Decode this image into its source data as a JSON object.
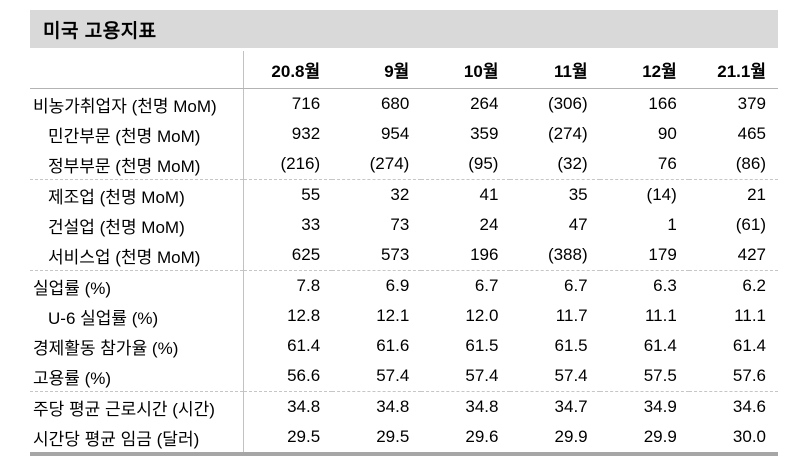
{
  "title": "미국 고용지표",
  "colors": {
    "title_bar_bg": "#d9d9d9",
    "header_underline": "#b3b3b3",
    "column_divider": "#c2c2c2",
    "dashed_separator": "#c6c6c6",
    "bottom_border": "#a6a6a6",
    "text": "#000000"
  },
  "chart_data": {
    "type": "table",
    "title": "미국 고용지표",
    "columns": [
      "",
      "20.8월",
      "9월",
      "10월",
      "11월",
      "12월",
      "21.1월"
    ],
    "rows": [
      {
        "label": "비농가취업자 (천명 MoM)",
        "indent": false,
        "separator_after": false,
        "values": [
          "716",
          "680",
          "264",
          "(306)",
          "166",
          "379"
        ]
      },
      {
        "label": "민간부문 (천명 MoM)",
        "indent": true,
        "separator_after": false,
        "values": [
          "932",
          "954",
          "359",
          "(274)",
          "90",
          "465"
        ]
      },
      {
        "label": "정부부문 (천명 MoM)",
        "indent": true,
        "separator_after": true,
        "values": [
          "(216)",
          "(274)",
          "(95)",
          "(32)",
          "76",
          "(86)"
        ]
      },
      {
        "label": "제조업 (천명 MoM)",
        "indent": true,
        "separator_after": false,
        "values": [
          "55",
          "32",
          "41",
          "35",
          "(14)",
          "21"
        ]
      },
      {
        "label": "건설업 (천명 MoM)",
        "indent": true,
        "separator_after": false,
        "values": [
          "33",
          "73",
          "24",
          "47",
          "1",
          "(61)"
        ]
      },
      {
        "label": "서비스업 (천명 MoM)",
        "indent": true,
        "separator_after": true,
        "values": [
          "625",
          "573",
          "196",
          "(388)",
          "179",
          "427"
        ]
      },
      {
        "label": "실업률 (%)",
        "indent": false,
        "separator_after": false,
        "values": [
          "7.8",
          "6.9",
          "6.7",
          "6.7",
          "6.3",
          "6.2"
        ]
      },
      {
        "label": "U-6 실업률 (%)",
        "indent": true,
        "separator_after": false,
        "values": [
          "12.8",
          "12.1",
          "12.0",
          "11.7",
          "11.1",
          "11.1"
        ]
      },
      {
        "label": "경제활동 참가율 (%)",
        "indent": false,
        "separator_after": false,
        "values": [
          "61.4",
          "61.6",
          "61.5",
          "61.5",
          "61.4",
          "61.4"
        ]
      },
      {
        "label": "고용률 (%)",
        "indent": false,
        "separator_after": true,
        "values": [
          "56.6",
          "57.4",
          "57.4",
          "57.4",
          "57.5",
          "57.6"
        ]
      },
      {
        "label": "주당 평균 근로시간 (시간)",
        "indent": false,
        "separator_after": false,
        "values": [
          "34.8",
          "34.8",
          "34.8",
          "34.7",
          "34.9",
          "34.6"
        ]
      },
      {
        "label": "시간당 평균 임금 (달러)",
        "indent": false,
        "separator_after": false,
        "values": [
          "29.5",
          "29.5",
          "29.6",
          "29.9",
          "29.9",
          "30.0"
        ]
      }
    ]
  }
}
